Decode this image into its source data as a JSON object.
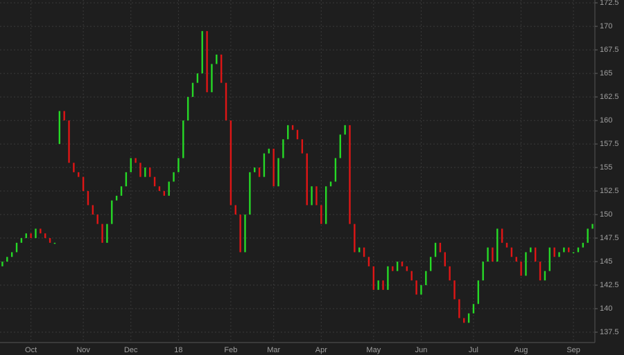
{
  "chart_data": {
    "type": "ohlc",
    "categories": [
      null,
      null,
      null,
      null,
      null,
      null,
      "Oct",
      null,
      null,
      null,
      null,
      null,
      null,
      null,
      null,
      null,
      null,
      "Nov",
      null,
      null,
      null,
      null,
      null,
      null,
      null,
      null,
      null,
      "Dec",
      null,
      null,
      null,
      null,
      null,
      null,
      null,
      null,
      null,
      "18",
      null,
      null,
      null,
      null,
      null,
      null,
      null,
      null,
      null,
      null,
      "Feb",
      null,
      null,
      null,
      null,
      null,
      null,
      null,
      null,
      "Mar",
      null,
      null,
      null,
      null,
      null,
      null,
      null,
      null,
      null,
      "Apr",
      null,
      null,
      null,
      null,
      null,
      null,
      null,
      null,
      null,
      null,
      "May",
      null,
      null,
      null,
      null,
      null,
      null,
      null,
      null,
      null,
      "Jun",
      null,
      null,
      null,
      null,
      null,
      null,
      null,
      null,
      null,
      null,
      "Jul",
      null,
      null,
      null,
      null,
      null,
      null,
      null,
      null,
      null,
      "Aug",
      null,
      null,
      null,
      null,
      null,
      null,
      null,
      null,
      null,
      null,
      "Sep",
      null,
      null,
      null,
      null
    ],
    "open": [
      144.5,
      145,
      145.5,
      146,
      147,
      147.5,
      148,
      147.5,
      148.5,
      148,
      147.5,
      147,
      157.5,
      161,
      160,
      155.5,
      154.5,
      154,
      152.5,
      151,
      150,
      149,
      147,
      149,
      151.5,
      152,
      153,
      154.5,
      156,
      155.5,
      154,
      155,
      154,
      153,
      152.5,
      152,
      153.5,
      154.5,
      156,
      160,
      162.5,
      164,
      165,
      169.5,
      163,
      166,
      167,
      164,
      160,
      151,
      150,
      146,
      150,
      154.5,
      155,
      154,
      156.5,
      157,
      153,
      156,
      158,
      159.5,
      159,
      158,
      156.5,
      151,
      153,
      151,
      149,
      153,
      153.5,
      156,
      158.5,
      159.5,
      149,
      146,
      146.5,
      145.5,
      144.5,
      142,
      143,
      142,
      144.5,
      144,
      145,
      144.5,
      144,
      143,
      141.5,
      142.5,
      144,
      145.5,
      147,
      146,
      144.5,
      143,
      141,
      139,
      138.5,
      139.5,
      140.5,
      143,
      145,
      146.5,
      145,
      148.5,
      147,
      146.5,
      145.5,
      145,
      143.5,
      146,
      146.5,
      145,
      143,
      144,
      146.5,
      145.5,
      146,
      146.5,
      146,
      146,
      146.5,
      147,
      148.5
    ],
    "close": [
      145,
      145.5,
      146,
      147,
      147.5,
      148,
      147.5,
      148.5,
      148,
      147.5,
      147,
      147,
      161,
      160,
      155.5,
      154.5,
      154,
      152.5,
      151,
      150,
      149,
      147,
      149,
      151.5,
      152,
      153,
      154.5,
      156,
      155.5,
      154,
      155,
      154,
      153,
      152.5,
      152,
      153.5,
      154.5,
      156,
      160,
      162.5,
      164,
      165,
      169.5,
      163,
      166,
      167,
      164,
      160,
      151,
      150,
      146,
      150,
      154.5,
      155,
      154,
      156.5,
      157,
      153,
      156,
      158,
      159.5,
      159,
      158,
      156.5,
      151,
      153,
      151,
      149,
      153,
      153.5,
      156,
      158.5,
      159.5,
      149,
      146,
      146.5,
      145.5,
      144.5,
      142,
      143,
      142,
      144.5,
      144,
      145,
      144.5,
      144,
      143,
      141.5,
      142.5,
      144,
      145.5,
      147,
      146,
      144.5,
      143,
      141,
      139,
      138.5,
      139.5,
      140.5,
      143,
      145,
      146.5,
      145,
      148.5,
      147,
      146.5,
      145.5,
      145,
      143.5,
      146,
      146.5,
      145,
      143,
      144,
      146.5,
      145.5,
      146,
      146.5,
      146,
      146,
      146.5,
      147,
      148.5,
      149
    ],
    "up_color": "#26d926",
    "down_color": "#e01515",
    "ylim": [
      136.4,
      172.8
    ],
    "yticks": [
      137.5,
      140,
      142.5,
      145,
      147.5,
      150,
      152.5,
      155,
      157.5,
      160,
      162.5,
      165,
      167.5,
      170,
      172.5
    ],
    "grid": true
  }
}
